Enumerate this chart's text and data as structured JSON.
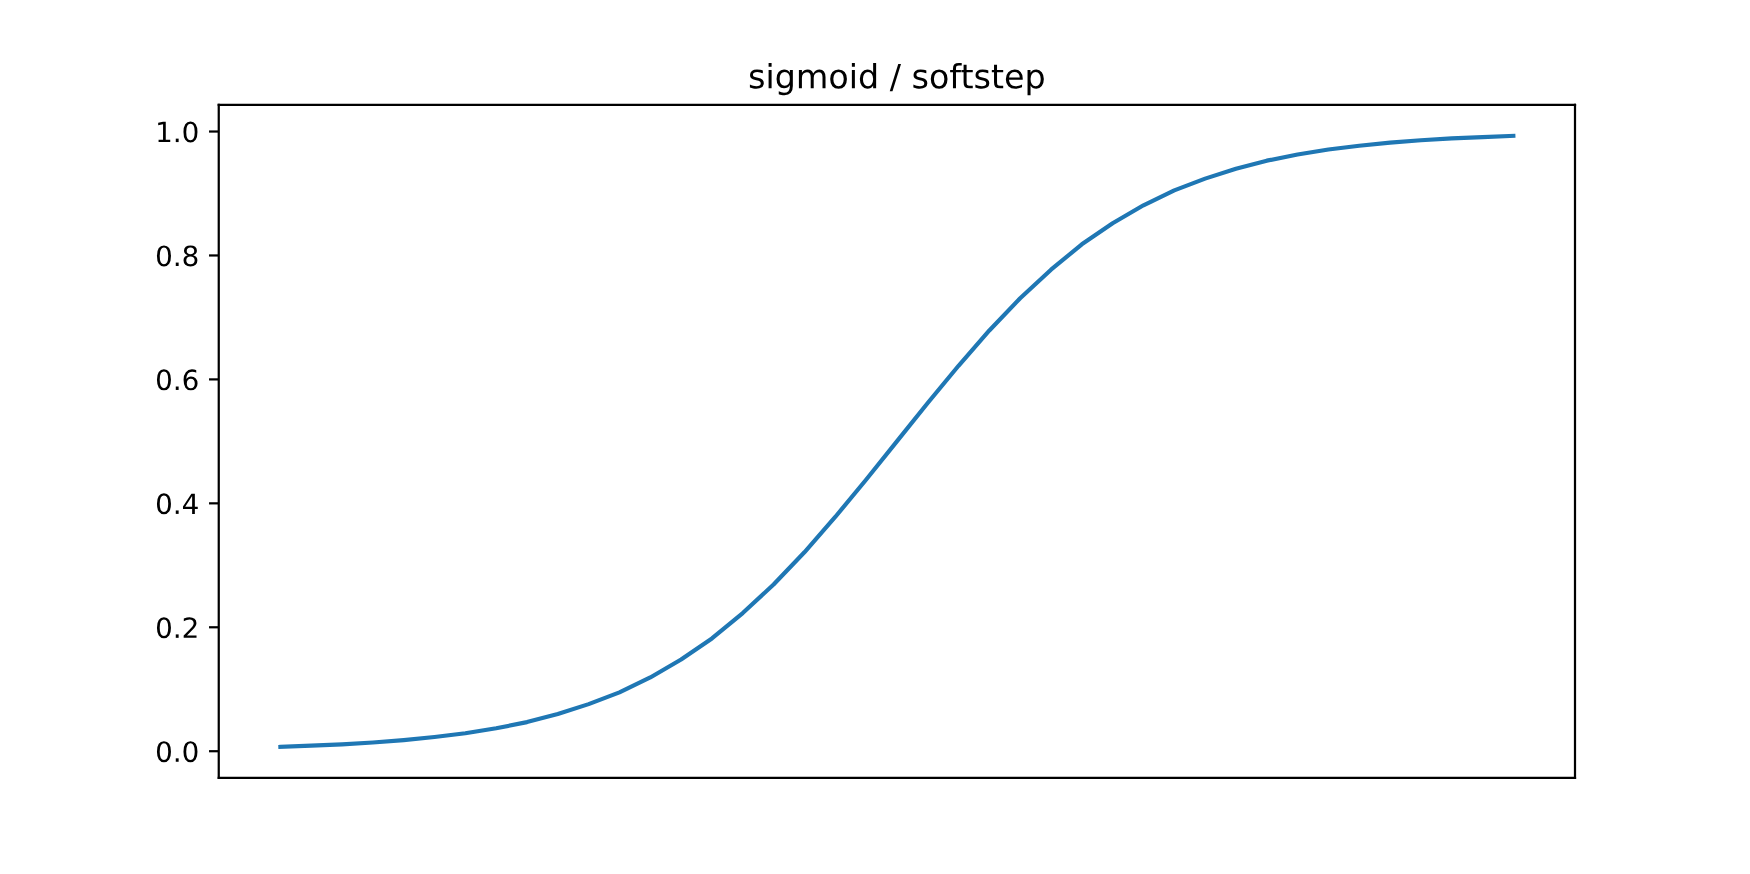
{
  "chart_data": {
    "type": "line",
    "title": "sigmoid / softstep",
    "categories": [
      null,
      null,
      null,
      null,
      null,
      null,
      null,
      null,
      null,
      null,
      null,
      null,
      null,
      null,
      null,
      null,
      null,
      null,
      null,
      null,
      null,
      null,
      null,
      null,
      null,
      null,
      null,
      null,
      null,
      null,
      null,
      null,
      null,
      null,
      null,
      null,
      null,
      null,
      null,
      null,
      null
    ],
    "series": [
      {
        "color": "#1f77b4",
        "values": [
          0.007,
          0.009,
          0.011,
          0.014,
          0.018,
          0.023,
          0.029,
          0.037,
          0.047,
          0.06,
          0.076,
          0.095,
          0.119,
          0.148,
          0.182,
          0.223,
          0.269,
          0.321,
          0.378,
          0.438,
          0.5,
          0.562,
          0.622,
          0.679,
          0.731,
          0.777,
          0.818,
          0.852,
          0.881,
          0.905,
          0.924,
          0.94,
          0.953,
          0.963,
          0.971,
          0.977,
          0.982,
          0.986,
          0.989,
          0.991,
          0.993
        ]
      }
    ],
    "ylim": [
      -0.043,
      1.043
    ],
    "yticks": [
      {
        "value": 0,
        "label": "0.0"
      },
      {
        "value": 0.2,
        "label": "0.2"
      },
      {
        "value": 0.4,
        "label": "0.4"
      },
      {
        "value": 0.6,
        "label": "0.6"
      },
      {
        "value": 0.8,
        "label": "0.8"
      },
      {
        "value": 1,
        "label": "1.0"
      }
    ],
    "tick_labels": "y",
    "grid": false,
    "legend": false
  }
}
